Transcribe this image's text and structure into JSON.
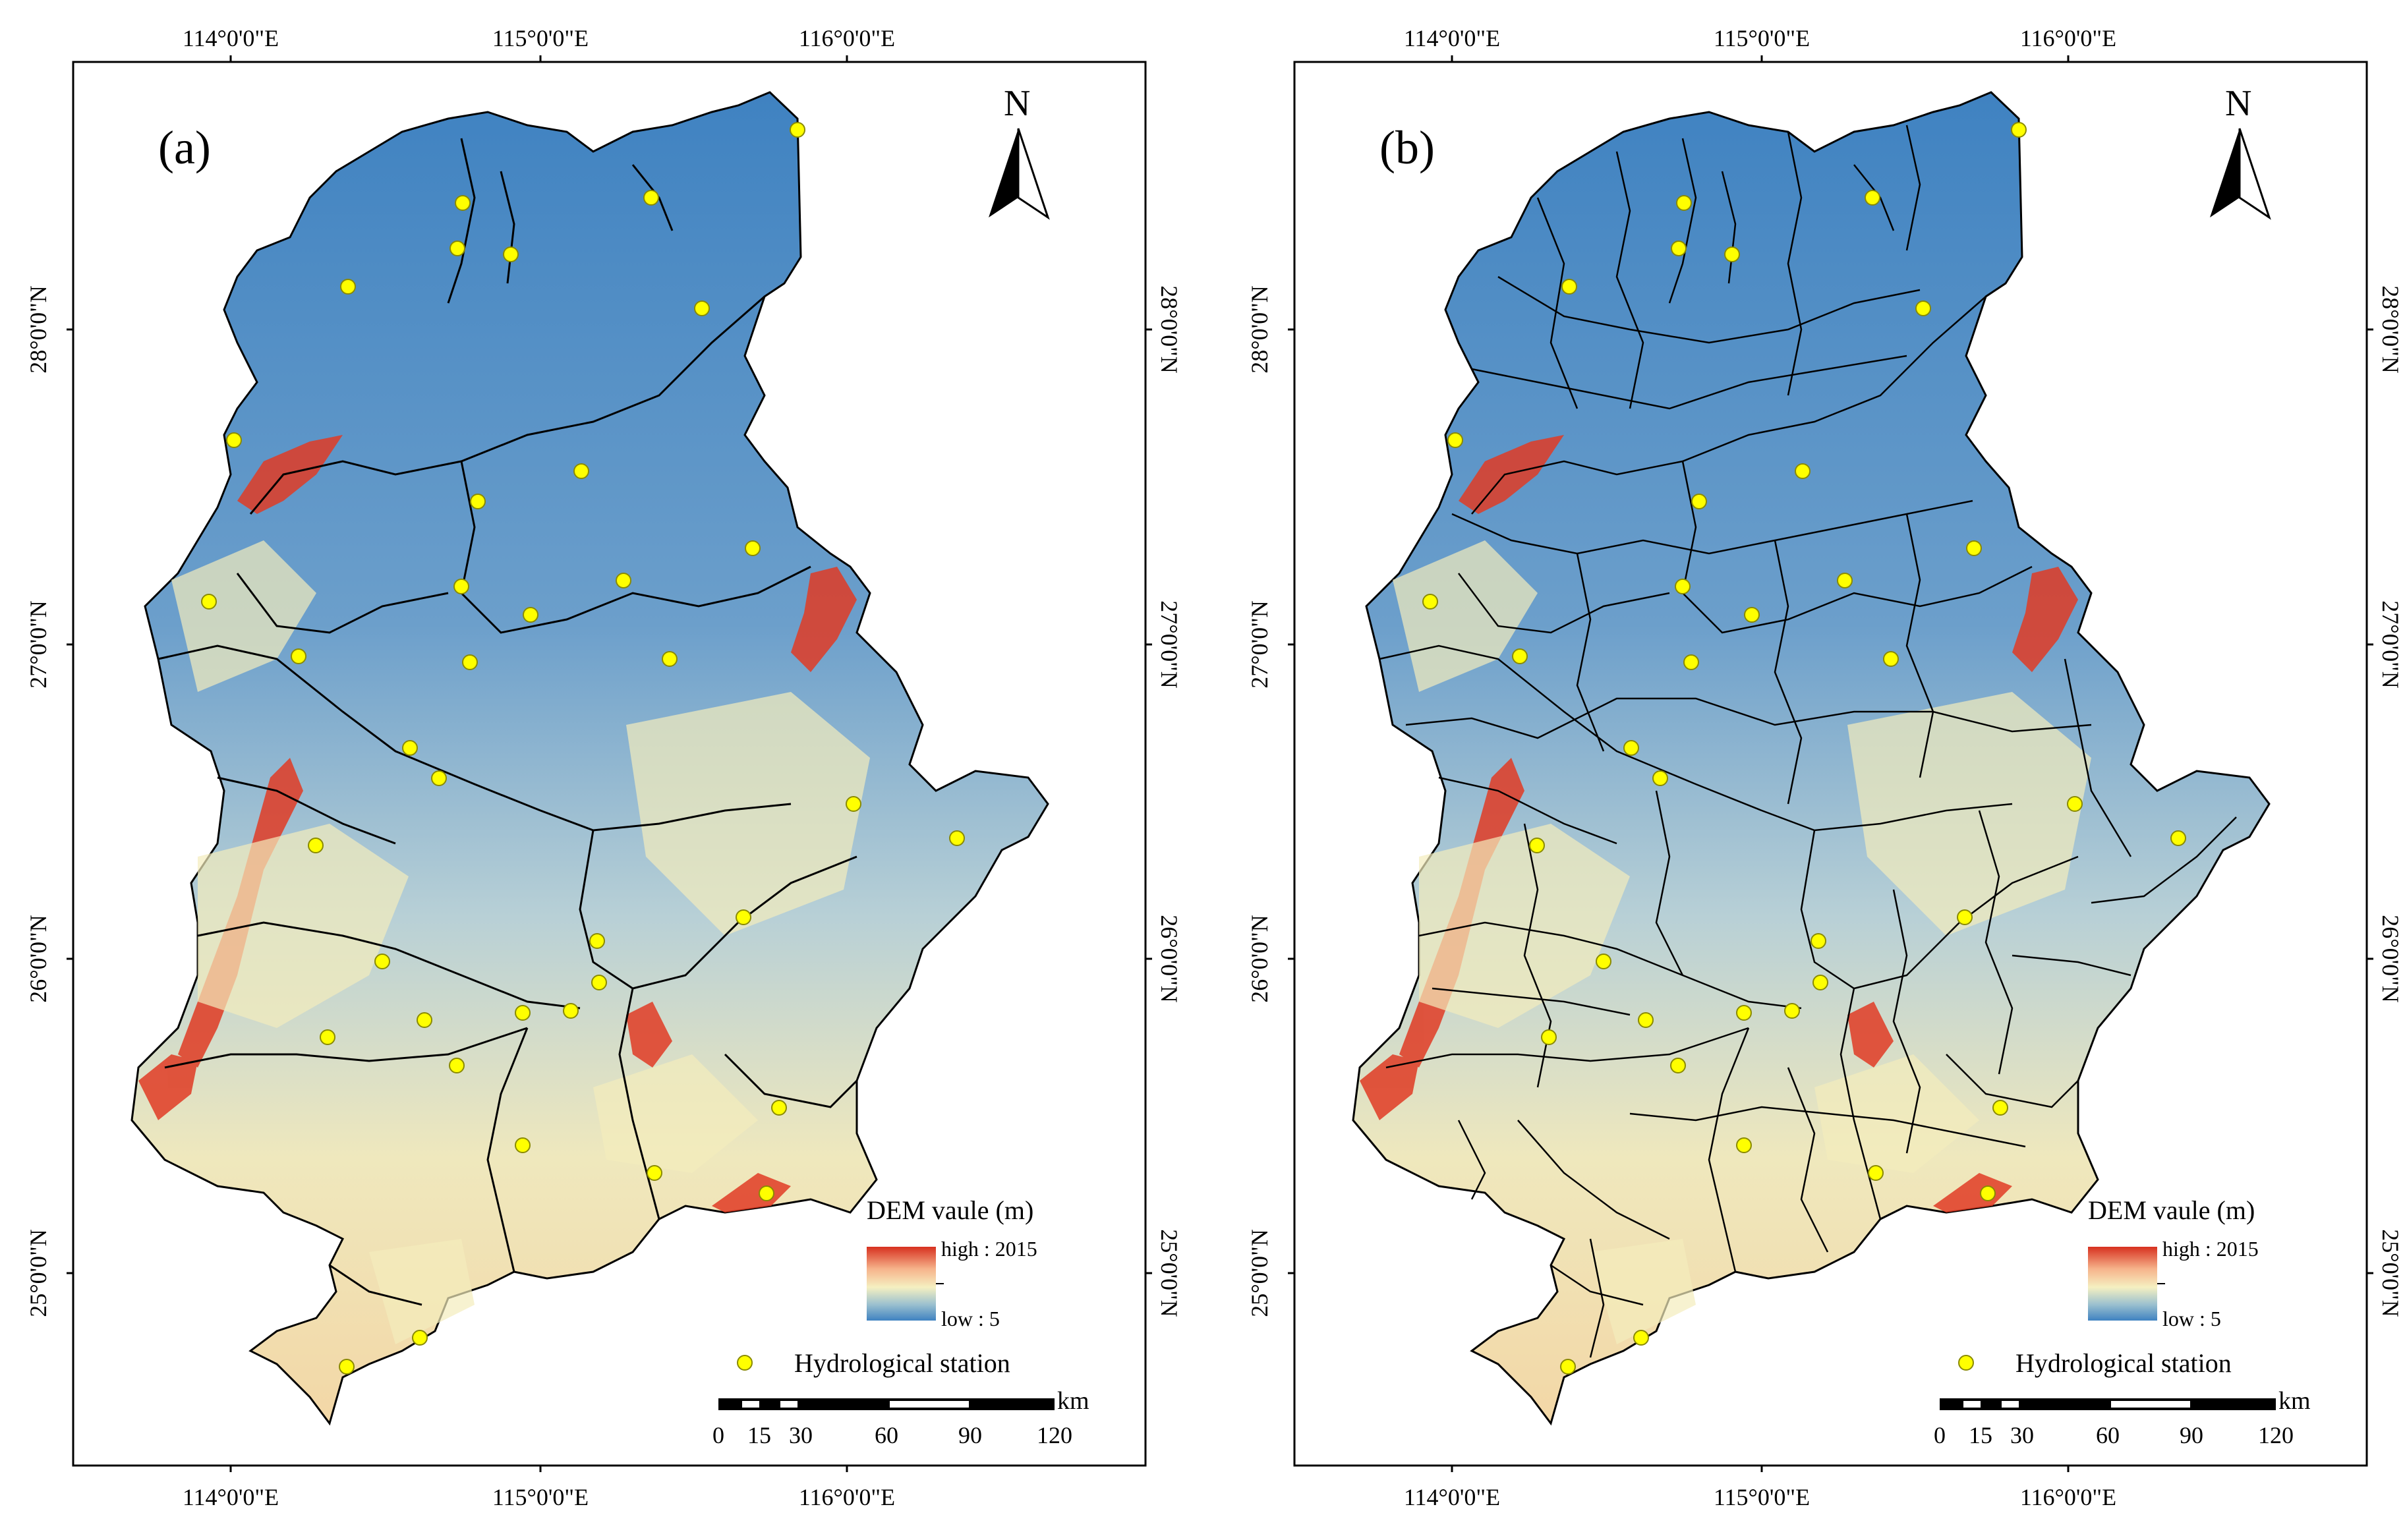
{
  "legend": {
    "title": "DEM vaule (m)",
    "high_label": "high : 2015",
    "low_label": "low : 5",
    "station_label": "Hydrological station",
    "gradient_colors": [
      "#d7301f",
      "#f6b38b",
      "#f5f0c1",
      "#9cc1cf",
      "#3f82c1"
    ]
  },
  "scale_bar": {
    "unit": "km",
    "ticks": [
      "0",
      "15",
      "30",
      "60",
      "90",
      "120"
    ]
  },
  "north_arrow": {
    "label": "N"
  },
  "panels": [
    {
      "label": "(a)",
      "lon_ticks": [
        "114°0'0\"E",
        "115°0'0\"E",
        "116°0'0\"E"
      ],
      "lat_ticks": [
        "28°0'0\"N",
        "27°0'0\"N",
        "26°0'0\"N",
        "25°0'0\"N"
      ]
    },
    {
      "label": "(b)",
      "lon_ticks": [
        "114°0'0\"E",
        "115°0'0\"E",
        "116°0'0\"E"
      ],
      "lat_ticks": [
        "28°0'0\"N",
        "27°0'0\"N",
        "26°0'0\"N",
        "25°0'0\"N"
      ]
    }
  ],
  "colors": {
    "station_fill": "#ffff00",
    "station_stroke": "#8a8a00",
    "lowland": "#4d86c2",
    "highland": "#e03b24",
    "midland": "#f3ecbc"
  }
}
